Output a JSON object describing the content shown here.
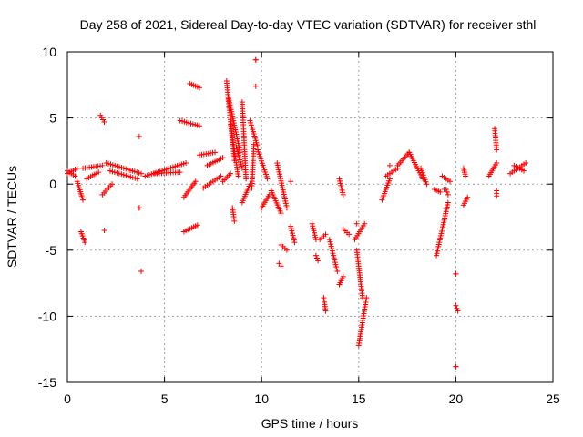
{
  "chart_data": {
    "type": "scatter",
    "title": "Day 258 of 2021, Sidereal Day-to-day VTEC variation (SDTVAR) for receiver sthl",
    "xlabel": "GPS time / hours",
    "ylabel": "SDTVAR / TECUs",
    "xlim": [
      0,
      25
    ],
    "ylim": [
      -15,
      10
    ],
    "xticks": [
      0,
      5,
      10,
      15,
      20,
      25
    ],
    "yticks": [
      -15,
      -10,
      -5,
      0,
      5,
      10
    ],
    "grid": true,
    "marker": "plus",
    "color": "#ff0000",
    "segments": [
      {
        "t0": 0.0,
        "v0": 1.0,
        "t1": 0.4,
        "v1": 0.6
      },
      {
        "t0": 0.0,
        "v0": 0.8,
        "t1": 0.5,
        "v1": 1.2
      },
      {
        "t0": 0.5,
        "v0": 0.2,
        "t1": 0.8,
        "v1": -1.2
      },
      {
        "t0": 0.7,
        "v0": -3.6,
        "t1": 0.9,
        "v1": -4.4
      },
      {
        "t0": 0.8,
        "v0": 1.2,
        "t1": 1.8,
        "v1": 1.4
      },
      {
        "t0": 1.0,
        "v0": 0.4,
        "t1": 1.6,
        "v1": 0.9
      },
      {
        "t0": 1.7,
        "v0": 5.2,
        "t1": 1.9,
        "v1": 4.7
      },
      {
        "t0": 1.8,
        "v0": -0.8,
        "t1": 2.3,
        "v1": 0.0
      },
      {
        "t0": 2.0,
        "v0": 1.6,
        "t1": 3.8,
        "v1": 0.8
      },
      {
        "t0": 2.2,
        "v0": 1.0,
        "t1": 3.6,
        "v1": 0.4
      },
      {
        "t0": 3.7,
        "v0": -1.8,
        "t1": 3.7,
        "v1": -1.8
      },
      {
        "t0": 4.0,
        "v0": 0.6,
        "t1": 6.1,
        "v1": 1.6
      },
      {
        "t0": 4.5,
        "v0": 0.8,
        "t1": 5.8,
        "v1": 0.9
      },
      {
        "t0": 5.8,
        "v0": 4.8,
        "t1": 6.8,
        "v1": 4.4
      },
      {
        "t0": 6.3,
        "v0": 7.6,
        "t1": 6.8,
        "v1": 7.3
      },
      {
        "t0": 6.0,
        "v0": -3.6,
        "t1": 6.7,
        "v1": -3.1
      },
      {
        "t0": 6.0,
        "v0": -1.0,
        "t1": 6.6,
        "v1": 0.2
      },
      {
        "t0": 6.8,
        "v0": 2.2,
        "t1": 7.6,
        "v1": 2.4
      },
      {
        "t0": 7.0,
        "v0": -0.3,
        "t1": 7.9,
        "v1": 0.6
      },
      {
        "t0": 7.2,
        "v0": 1.4,
        "t1": 8.0,
        "v1": 2.0
      },
      {
        "t0": 8.0,
        "v0": 0.2,
        "t1": 8.4,
        "v1": 0.8
      },
      {
        "t0": 8.2,
        "v0": 7.8,
        "t1": 8.6,
        "v1": 1.8
      },
      {
        "t0": 8.3,
        "v0": 6.5,
        "t1": 8.9,
        "v1": 2.4
      },
      {
        "t0": 8.4,
        "v0": 4.5,
        "t1": 8.8,
        "v1": 0.6
      },
      {
        "t0": 8.6,
        "v0": -2.8,
        "t1": 8.5,
        "v1": -1.8
      },
      {
        "t0": 8.7,
        "v0": 2.8,
        "t1": 9.0,
        "v1": 1.2
      },
      {
        "t0": 9.0,
        "v0": 6.2,
        "t1": 9.2,
        "v1": 0.4
      },
      {
        "t0": 9.0,
        "v0": -1.4,
        "t1": 9.4,
        "v1": 0.0
      },
      {
        "t0": 9.4,
        "v0": 4.8,
        "t1": 9.8,
        "v1": 2.8
      },
      {
        "t0": 9.6,
        "v0": 3.0,
        "t1": 9.5,
        "v1": -0.3
      },
      {
        "t0": 9.7,
        "v0": 9.4,
        "t1": 9.7,
        "v1": 9.4
      },
      {
        "t0": 9.8,
        "v0": 2.6,
        "t1": 10.3,
        "v1": 0.4
      },
      {
        "t0": 10.0,
        "v0": -1.8,
        "t1": 10.4,
        "v1": -0.8
      },
      {
        "t0": 10.5,
        "v0": -0.5,
        "t1": 11.0,
        "v1": -2.2
      },
      {
        "t0": 10.8,
        "v0": 1.6,
        "t1": 11.3,
        "v1": -1.8
      },
      {
        "t0": 11.0,
        "v0": -4.6,
        "t1": 11.3,
        "v1": -5.0
      },
      {
        "t0": 10.9,
        "v0": -6.0,
        "t1": 11.0,
        "v1": -6.2
      },
      {
        "t0": 11.5,
        "v0": -3.2,
        "t1": 11.7,
        "v1": -4.4
      },
      {
        "t0": 12.6,
        "v0": -3.0,
        "t1": 12.8,
        "v1": -4.2
      },
      {
        "t0": 12.8,
        "v0": -5.4,
        "t1": 12.9,
        "v1": -5.8
      },
      {
        "t0": 13.0,
        "v0": -4.2,
        "t1": 13.3,
        "v1": -3.8
      },
      {
        "t0": 13.2,
        "v0": -8.6,
        "t1": 13.3,
        "v1": -9.6
      },
      {
        "t0": 13.5,
        "v0": -4.2,
        "t1": 13.9,
        "v1": -6.6
      },
      {
        "t0": 14.0,
        "v0": -7.6,
        "t1": 14.2,
        "v1": -7.0
      },
      {
        "t0": 14.0,
        "v0": 0.4,
        "t1": 14.2,
        "v1": -0.8
      },
      {
        "t0": 14.2,
        "v0": -3.4,
        "t1": 14.5,
        "v1": -3.8
      },
      {
        "t0": 14.8,
        "v0": -4.2,
        "t1": 15.3,
        "v1": -3.0
      },
      {
        "t0": 14.9,
        "v0": -5.0,
        "t1": 15.2,
        "v1": -8.6
      },
      {
        "t0": 15.0,
        "v0": -12.2,
        "t1": 15.4,
        "v1": -8.6
      },
      {
        "t0": 16.2,
        "v0": -1.2,
        "t1": 16.6,
        "v1": 0.4
      },
      {
        "t0": 16.4,
        "v0": 0.6,
        "t1": 17.0,
        "v1": 1.2
      },
      {
        "t0": 17.0,
        "v0": 1.4,
        "t1": 17.6,
        "v1": 2.4
      },
      {
        "t0": 17.6,
        "v0": 2.4,
        "t1": 18.3,
        "v1": 0.4
      },
      {
        "t0": 18.2,
        "v0": 1.2,
        "t1": 18.5,
        "v1": 0.0
      },
      {
        "t0": 18.9,
        "v0": -0.4,
        "t1": 19.2,
        "v1": -0.6
      },
      {
        "t0": 19.0,
        "v0": -5.4,
        "t1": 19.6,
        "v1": -1.4
      },
      {
        "t0": 19.3,
        "v0": 0.6,
        "t1": 19.7,
        "v1": 0.2
      },
      {
        "t0": 19.5,
        "v0": -0.4,
        "t1": 19.6,
        "v1": -0.8
      },
      {
        "t0": 20.0,
        "v0": -9.2,
        "t1": 20.1,
        "v1": -9.6
      },
      {
        "t0": 20.0,
        "v0": -6.8,
        "t1": 20.0,
        "v1": -6.8
      },
      {
        "t0": 20.0,
        "v0": -13.8,
        "t1": 20.0,
        "v1": -13.8
      },
      {
        "t0": 20.4,
        "v0": 1.2,
        "t1": 20.5,
        "v1": 0.6
      },
      {
        "t0": 20.4,
        "v0": -1.6,
        "t1": 20.6,
        "v1": -1.0
      },
      {
        "t0": 21.7,
        "v0": 0.6,
        "t1": 22.1,
        "v1": 1.6
      },
      {
        "t0": 22.0,
        "v0": 4.2,
        "t1": 22.1,
        "v1": 2.6
      },
      {
        "t0": 22.1,
        "v0": -0.5,
        "t1": 22.1,
        "v1": -0.9
      },
      {
        "t0": 22.8,
        "v0": 0.8,
        "t1": 23.6,
        "v1": 1.6
      },
      {
        "t0": 23.0,
        "v0": 1.4,
        "t1": 23.5,
        "v1": 1.0
      }
    ],
    "isolated_points": [
      {
        "t": 1.9,
        "v": -3.5
      },
      {
        "t": 3.7,
        "v": 3.6
      },
      {
        "t": 3.8,
        "v": -6.6
      },
      {
        "t": 9.7,
        "v": 7.4
      },
      {
        "t": 11.5,
        "v": 0.2
      },
      {
        "t": 14.9,
        "v": -3.0
      },
      {
        "t": 16.6,
        "v": 1.4
      },
      {
        "t": 19.4,
        "v": -0.4
      },
      {
        "t": 22.1,
        "v": 2.8
      }
    ]
  }
}
